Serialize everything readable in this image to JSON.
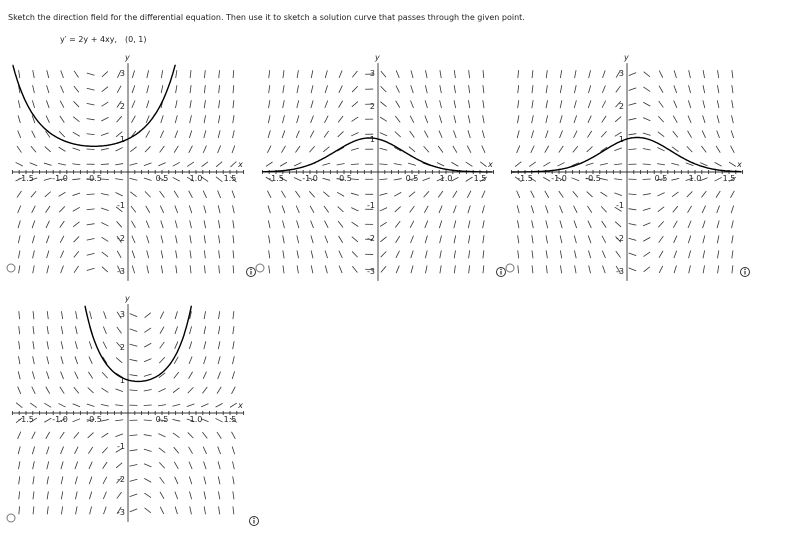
{
  "instruction": "Sketch the direction field for the differential equation. Then use it to sketch a solution curve that passes through the given point.",
  "equation": "y′ = 2y + 4xy,",
  "point": "(0, 1)",
  "axes": {
    "x_label": "x",
    "y_label": "y",
    "x_ticks": [
      "-1.5",
      "-1.0",
      "-0.5",
      "0.5",
      "1.0",
      "1.5"
    ],
    "y_ticks": [
      "-3",
      "-2",
      "-1",
      "1",
      "2",
      "3"
    ]
  }
}
